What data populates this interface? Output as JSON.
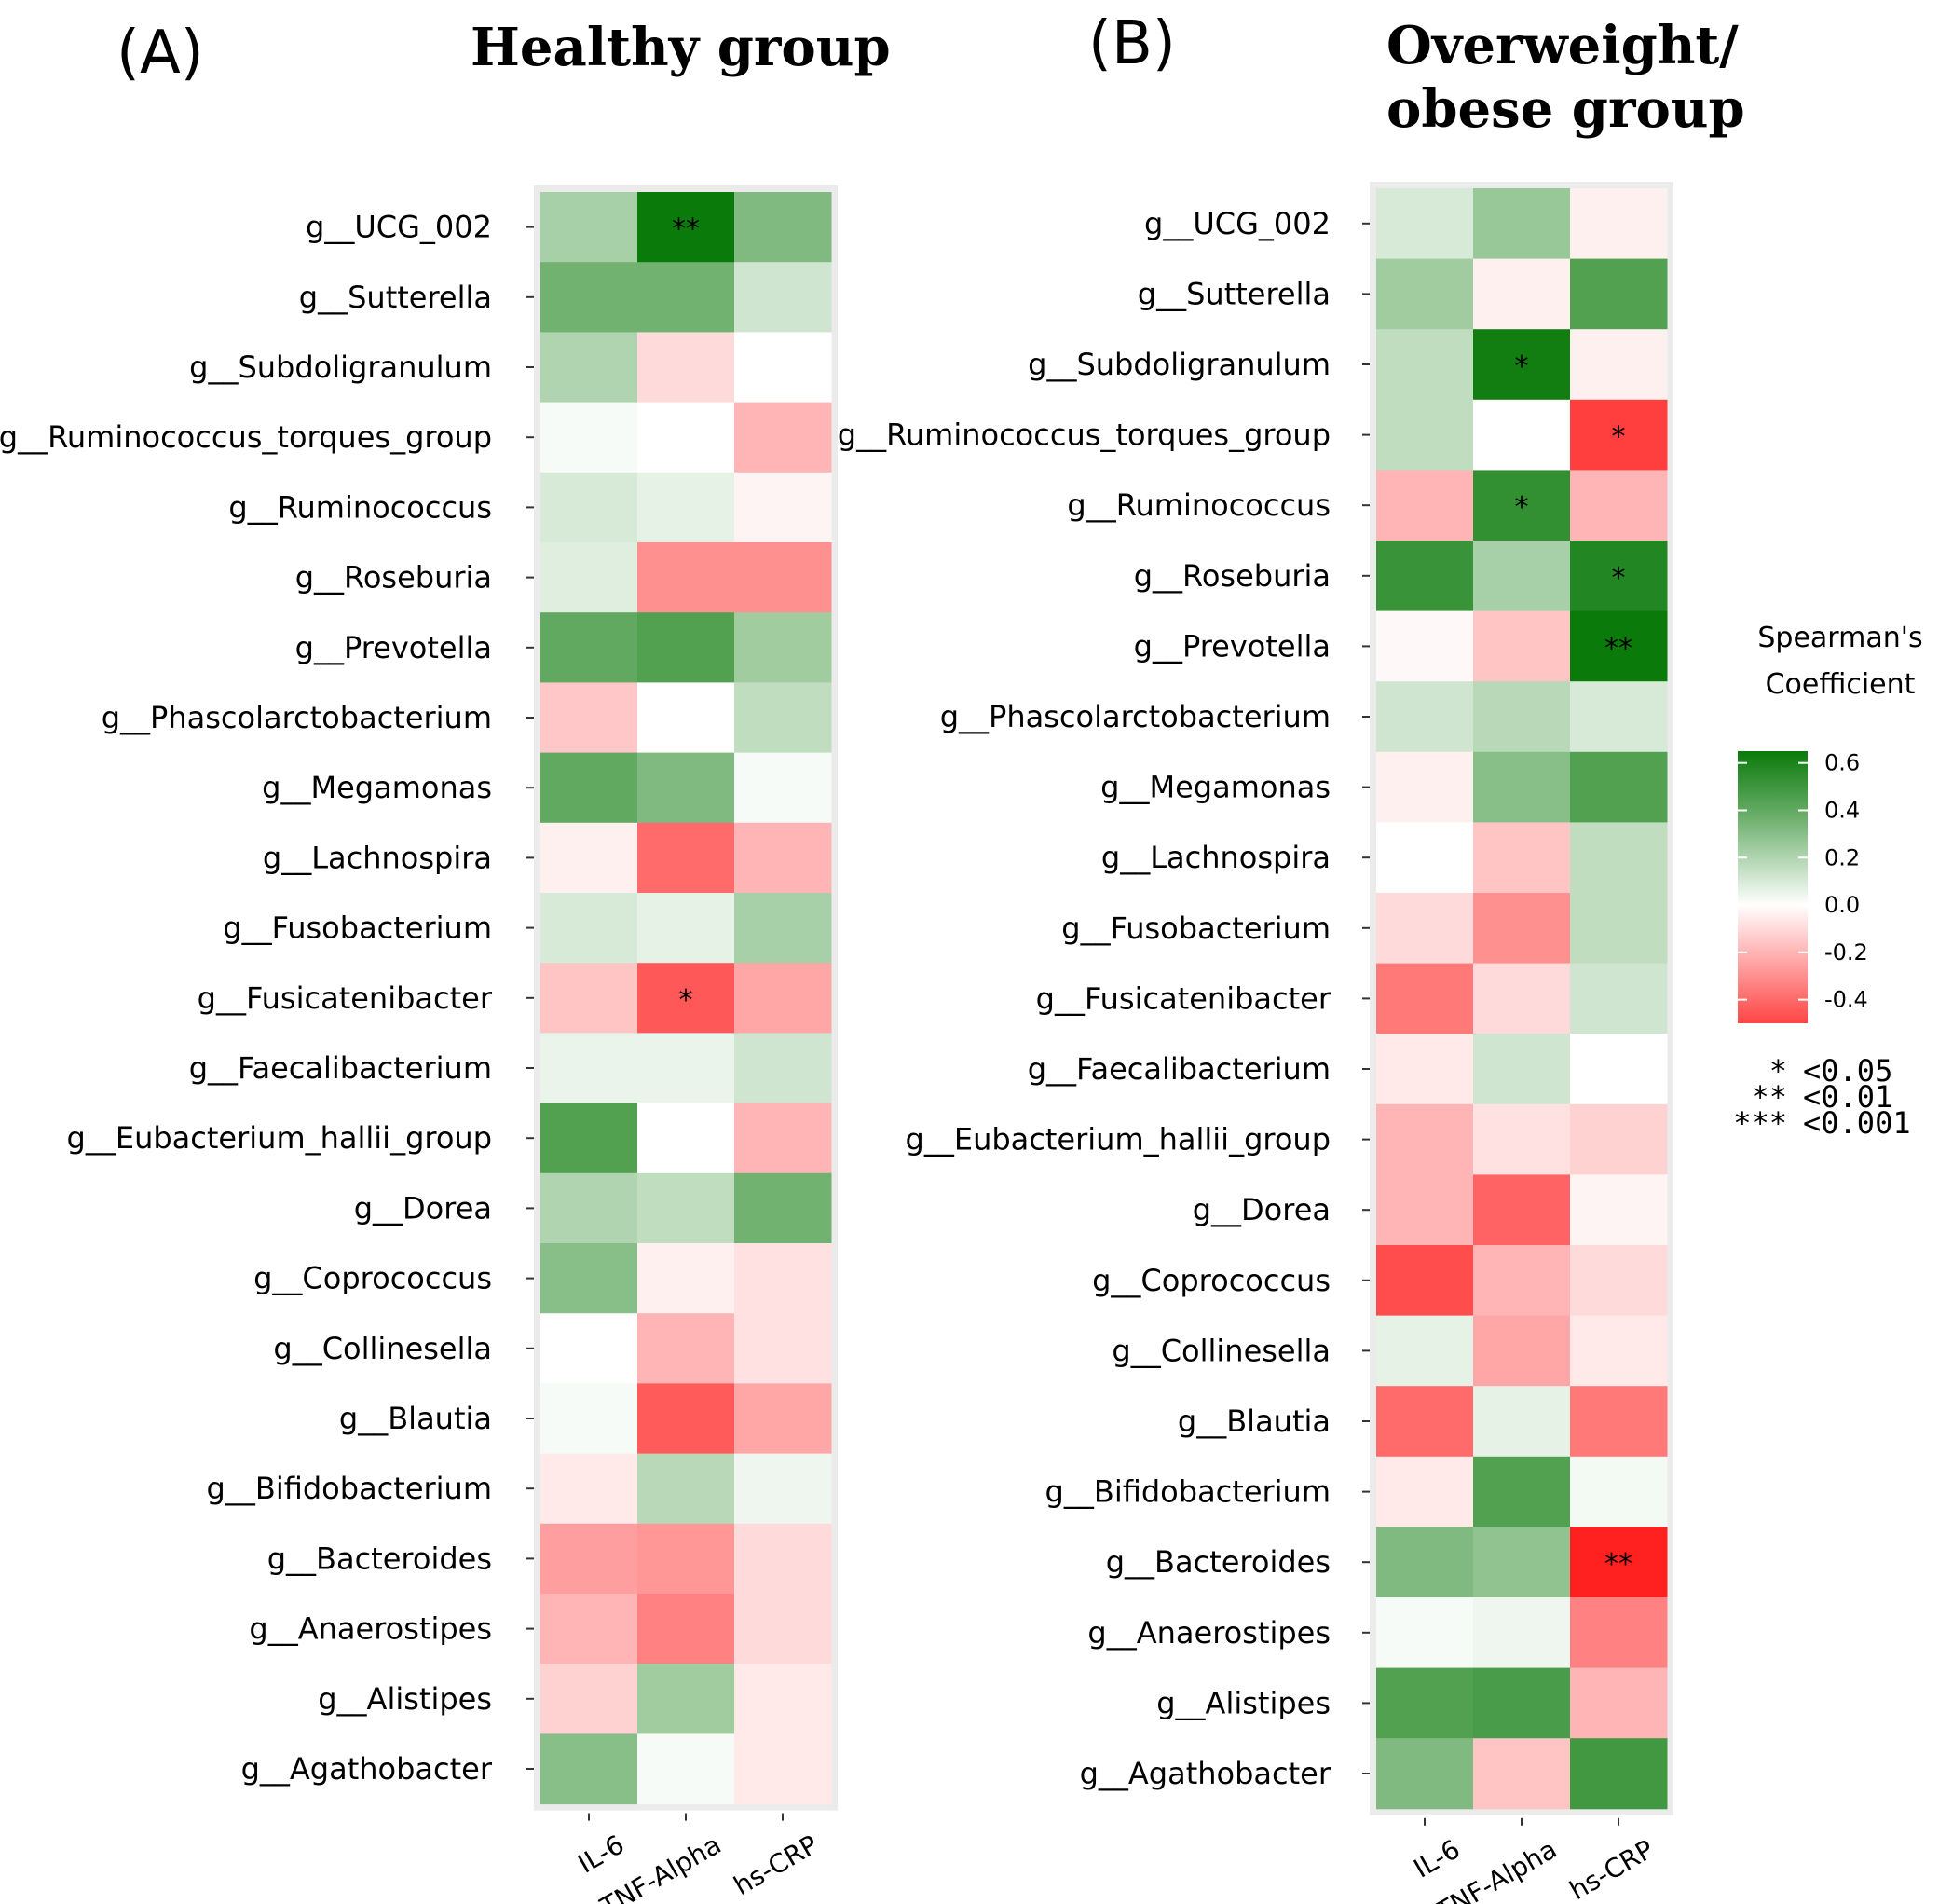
{
  "chart_data": [
    {
      "type": "heatmap",
      "panel": "(A)",
      "title": "Healthy group",
      "columns": [
        "IL-6",
        "TNF-Alpha",
        "hs-CRP"
      ],
      "rows": [
        "g__UCG_002",
        "g__Sutterella",
        "g__Subdoligranulum",
        "g__Ruminococcus_torques_group",
        "g__Ruminococcus",
        "g__Roseburia",
        "g__Prevotella",
        "g__Phascolarctobacterium",
        "g__Megamonas",
        "g__Lachnospira",
        "g__Fusobacterium",
        "g__Fusicatenibacter",
        "g__Faecalibacterium",
        "g__Eubacterium_hallii_group",
        "g__Dorea",
        "g__Coprococcus",
        "g__Collinesella",
        "g__Blautia",
        "g__Bifidobacterium",
        "g__Bacteroides",
        "g__Anaerostipes",
        "g__Alistipes",
        "g__Agathobacter"
      ],
      "values": [
        [
          0.22,
          0.62,
          0.32
        ],
        [
          0.36,
          0.36,
          0.12
        ],
        [
          0.2,
          -0.1,
          0.0
        ],
        [
          0.02,
          0.0,
          -0.2
        ],
        [
          0.1,
          0.06,
          -0.03
        ],
        [
          0.08,
          -0.3,
          -0.3
        ],
        [
          0.4,
          0.44,
          0.24
        ],
        [
          -0.15,
          0.0,
          0.16
        ],
        [
          0.4,
          0.32,
          0.02
        ],
        [
          -0.04,
          -0.4,
          -0.2
        ],
        [
          0.1,
          0.06,
          0.22
        ],
        [
          -0.16,
          -0.45,
          -0.24
        ],
        [
          0.05,
          0.05,
          0.12
        ],
        [
          0.44,
          0.0,
          -0.2
        ],
        [
          0.2,
          0.16,
          0.36
        ],
        [
          0.3,
          -0.04,
          -0.08
        ],
        [
          0.0,
          -0.2,
          -0.08
        ],
        [
          0.02,
          -0.44,
          -0.24
        ],
        [
          -0.06,
          0.18,
          0.04
        ],
        [
          -0.26,
          -0.28,
          -0.1
        ],
        [
          -0.2,
          -0.34,
          -0.1
        ],
        [
          -0.12,
          0.24,
          -0.06
        ],
        [
          0.3,
          0.02,
          -0.06
        ]
      ],
      "significance": [
        [
          "",
          "**",
          ""
        ],
        [
          "",
          "",
          ""
        ],
        [
          "",
          "",
          ""
        ],
        [
          "",
          "",
          ""
        ],
        [
          "",
          "",
          ""
        ],
        [
          "",
          "",
          ""
        ],
        [
          "",
          "",
          ""
        ],
        [
          "",
          "",
          ""
        ],
        [
          "",
          "",
          ""
        ],
        [
          "",
          "",
          ""
        ],
        [
          "",
          "",
          ""
        ],
        [
          "",
          "*",
          ""
        ],
        [
          "",
          "",
          ""
        ],
        [
          "",
          "",
          ""
        ],
        [
          "",
          "",
          ""
        ],
        [
          "",
          "",
          ""
        ],
        [
          "",
          "",
          ""
        ],
        [
          "",
          "",
          ""
        ],
        [
          "",
          "",
          ""
        ],
        [
          "",
          "",
          ""
        ],
        [
          "",
          "",
          ""
        ],
        [
          "",
          "",
          ""
        ],
        [
          "",
          "",
          ""
        ]
      ]
    },
    {
      "type": "heatmap",
      "panel": "(B)",
      "title_lines": [
        "Overweight/",
        "obese group"
      ],
      "columns": [
        "IL-6",
        "TNF-Alpha",
        "hs-CRP"
      ],
      "rows": [
        "g__UCG_002",
        "g__Sutterella",
        "g__Subdoligranulum",
        "g__Ruminococcus_torques_group",
        "g__Ruminococcus",
        "g__Roseburia",
        "g__Prevotella",
        "g__Phascolarctobacterium",
        "g__Megamonas",
        "g__Lachnospira",
        "g__Fusobacterium",
        "g__Fusicatenibacter",
        "g__Faecalibacterium",
        "g__Eubacterium_hallii_group",
        "g__Dorea",
        "g__Coprococcus",
        "g__Collinesella",
        "g__Blautia",
        "g__Bifidobacterium",
        "g__Bacteroides",
        "g__Anaerostipes",
        "g__Alistipes",
        "g__Agathobacter"
      ],
      "values": [
        [
          0.1,
          0.26,
          -0.04
        ],
        [
          0.24,
          -0.04,
          0.44
        ],
        [
          0.16,
          0.6,
          -0.04
        ],
        [
          0.16,
          0.0,
          -0.52
        ],
        [
          -0.2,
          0.52,
          -0.2
        ],
        [
          0.5,
          0.22,
          0.56
        ],
        [
          -0.02,
          -0.16,
          0.62
        ],
        [
          0.12,
          0.18,
          0.1
        ],
        [
          -0.04,
          0.3,
          0.44
        ],
        [
          0.0,
          -0.16,
          0.16
        ],
        [
          -0.1,
          -0.3,
          0.16
        ],
        [
          -0.36,
          -0.1,
          0.12
        ],
        [
          -0.06,
          0.12,
          0.0
        ],
        [
          -0.2,
          -0.08,
          -0.12
        ],
        [
          -0.2,
          -0.42,
          -0.03
        ],
        [
          -0.48,
          -0.2,
          -0.1
        ],
        [
          0.06,
          -0.24,
          -0.06
        ],
        [
          -0.4,
          0.06,
          -0.36
        ],
        [
          -0.06,
          0.44,
          0.03
        ],
        [
          0.32,
          0.28,
          -0.6
        ],
        [
          0.02,
          0.04,
          -0.34
        ],
        [
          0.44,
          0.46,
          -0.2
        ],
        [
          0.32,
          -0.16,
          0.48
        ]
      ],
      "significance": [
        [
          "",
          "",
          ""
        ],
        [
          "",
          "",
          ""
        ],
        [
          "",
          "*",
          ""
        ],
        [
          "",
          "",
          "*"
        ],
        [
          "",
          "*",
          ""
        ],
        [
          "",
          "",
          "*"
        ],
        [
          "",
          "",
          "**"
        ],
        [
          "",
          "",
          ""
        ],
        [
          "",
          "",
          ""
        ],
        [
          "",
          "",
          ""
        ],
        [
          "",
          "",
          ""
        ],
        [
          "",
          "",
          ""
        ],
        [
          "",
          "",
          ""
        ],
        [
          "",
          "",
          ""
        ],
        [
          "",
          "",
          ""
        ],
        [
          "",
          "",
          ""
        ],
        [
          "",
          "",
          ""
        ],
        [
          "",
          "",
          ""
        ],
        [
          "",
          "",
          ""
        ],
        [
          "",
          "",
          "**"
        ],
        [
          "",
          "",
          ""
        ],
        [
          "",
          "",
          ""
        ],
        [
          "",
          "",
          ""
        ]
      ]
    }
  ],
  "legend": {
    "title_lines": [
      "Spearman's",
      "Coefficient"
    ],
    "range": [
      -0.5,
      0.65
    ],
    "ticks": [
      "0.6",
      "0.4",
      "0.2",
      "0.0",
      "-0.2",
      "-0.4"
    ],
    "tick_values": [
      0.6,
      0.4,
      0.2,
      0.0,
      -0.2,
      -0.4
    ],
    "color_high": "#0a7a0a",
    "color_mid": "#ffffff",
    "color_low": "#ff2020"
  },
  "significance_key": [
    {
      "symbol": "*",
      "label": "<0.05"
    },
    {
      "symbol": "**",
      "label": "<0.01"
    },
    {
      "symbol": "***",
      "label": "<0.001"
    }
  ]
}
